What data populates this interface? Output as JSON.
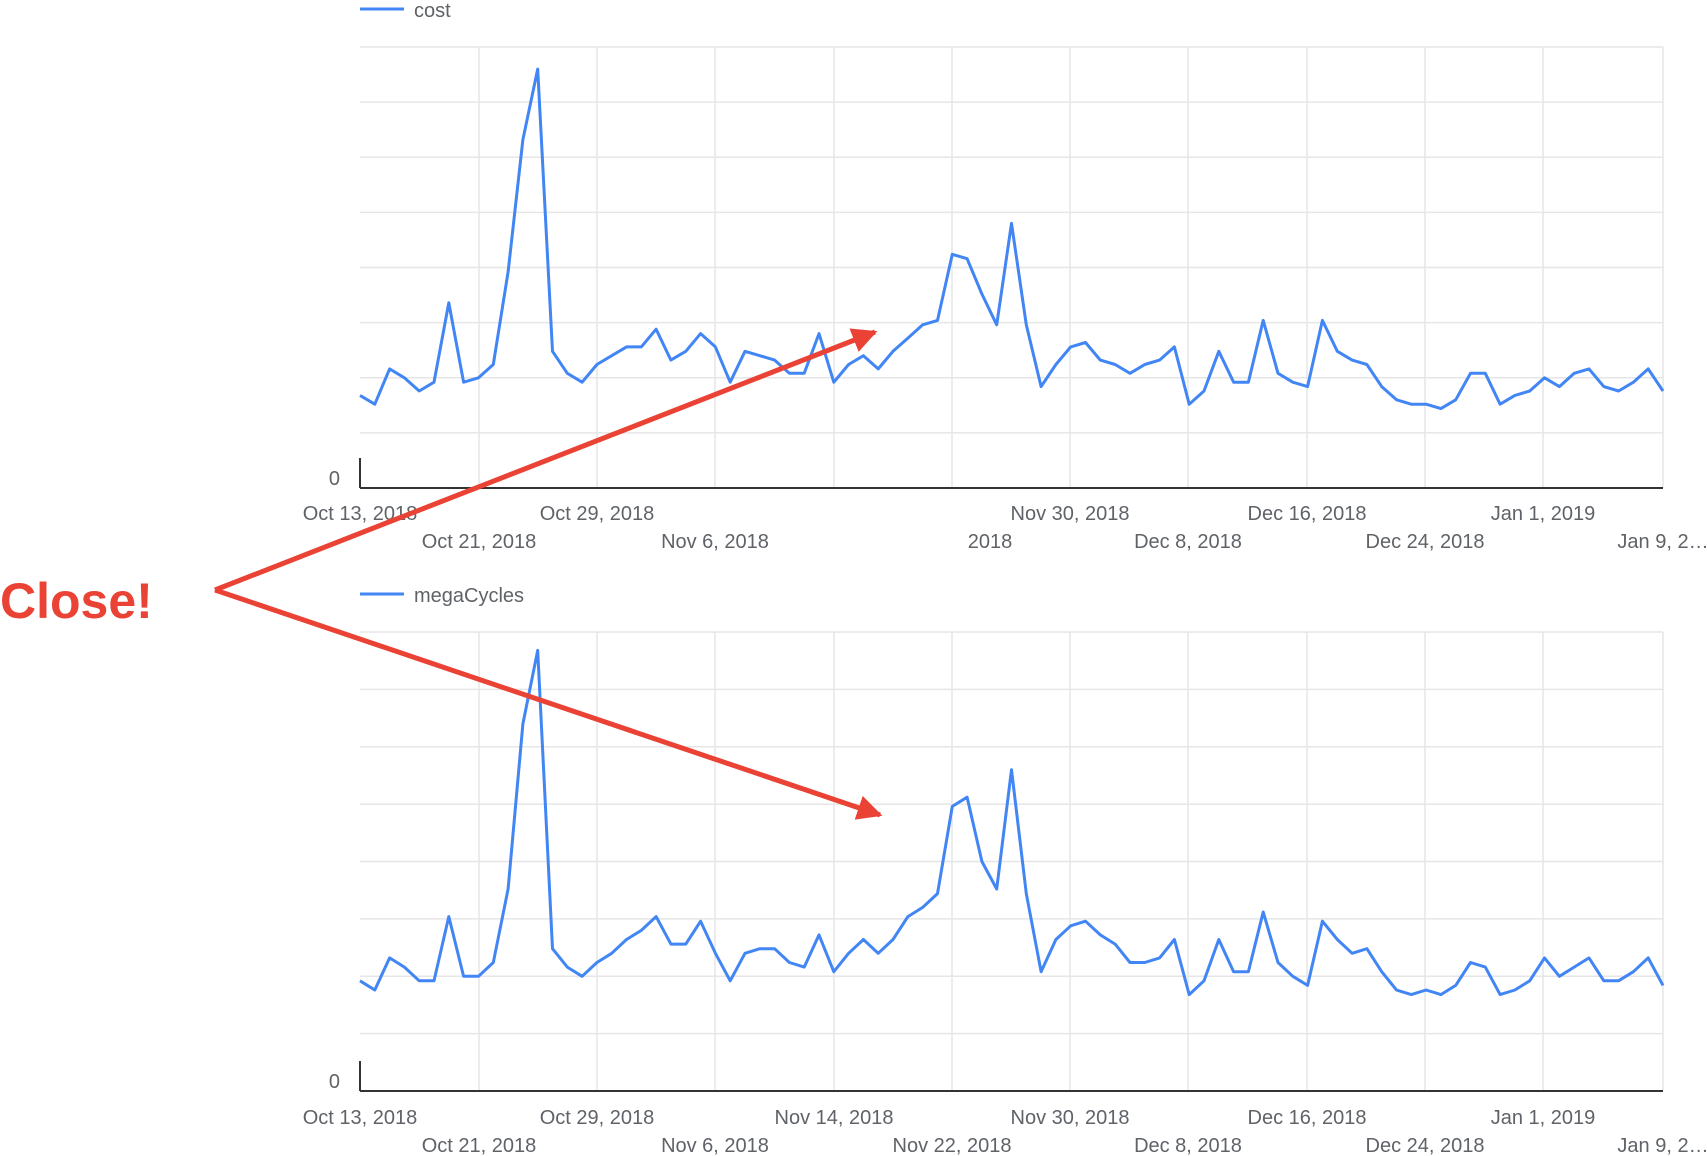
{
  "colors": {
    "series": "#4285f4",
    "grid": "#e6e6e6",
    "axis": "#333333",
    "annotation": "#ea4335",
    "text": "#5f6368"
  },
  "annotation": {
    "text": "Close!"
  },
  "chart_data": [
    {
      "type": "line",
      "legend_position": "top-left",
      "grid": true,
      "series": [
        {
          "name": "cost"
        }
      ],
      "y_zero_label": "0",
      "x_ticks_row1": [
        "Oct 13, 2018",
        "Oct 29, 2018",
        "Nov 30, 2018",
        "Dec 16, 2018",
        "Jan 1, 2019"
      ],
      "x_ticks_row2": [
        "Oct 21, 2018",
        "Nov 6, 2018",
        "2018",
        "Dec 8, 2018",
        "Dec 24, 2018",
        "Jan 9, 2…"
      ],
      "y": [
        0.21,
        0.19,
        0.27,
        0.25,
        0.22,
        0.24,
        0.42,
        0.24,
        0.25,
        0.28,
        0.49,
        0.79,
        0.95,
        0.31,
        0.26,
        0.24,
        0.28,
        0.3,
        0.32,
        0.32,
        0.36,
        0.29,
        0.31,
        0.35,
        0.32,
        0.24,
        0.31,
        0.3,
        0.29,
        0.26,
        0.26,
        0.35,
        0.24,
        0.28,
        0.3,
        0.27,
        0.31,
        0.34,
        0.37,
        0.38,
        0.53,
        0.52,
        0.44,
        0.37,
        0.6,
        0.37,
        0.23,
        0.28,
        0.32,
        0.33,
        0.29,
        0.28,
        0.26,
        0.28,
        0.29,
        0.32,
        0.19,
        0.22,
        0.31,
        0.24,
        0.24,
        0.38,
        0.26,
        0.24,
        0.23,
        0.38,
        0.31,
        0.29,
        0.28,
        0.23,
        0.2,
        0.19,
        0.19,
        0.18,
        0.2,
        0.26,
        0.26,
        0.19,
        0.21,
        0.22,
        0.25,
        0.23,
        0.26,
        0.27,
        0.23,
        0.22,
        0.24,
        0.27,
        0.22
      ]
    },
    {
      "type": "line",
      "legend_position": "top-left",
      "grid": true,
      "series": [
        {
          "name": "megaCycles"
        }
      ],
      "y_zero_label": "0",
      "x_ticks_row1": [
        "Oct 13, 2018",
        "Oct 29, 2018",
        "Nov 14, 2018",
        "Nov 30, 2018",
        "Dec 16, 2018",
        "Jan 1, 2019"
      ],
      "x_ticks_row2": [
        "Oct 21, 2018",
        "Nov 6, 2018",
        "Nov 22, 2018",
        "Dec 8, 2018",
        "Dec 24, 2018",
        "Jan 9, 2…"
      ],
      "y": [
        0.24,
        0.22,
        0.29,
        0.27,
        0.24,
        0.24,
        0.38,
        0.25,
        0.25,
        0.28,
        0.44,
        0.8,
        0.96,
        0.31,
        0.27,
        0.25,
        0.28,
        0.3,
        0.33,
        0.35,
        0.38,
        0.32,
        0.32,
        0.37,
        0.3,
        0.24,
        0.3,
        0.31,
        0.31,
        0.28,
        0.27,
        0.34,
        0.26,
        0.3,
        0.33,
        0.3,
        0.33,
        0.38,
        0.4,
        0.43,
        0.62,
        0.64,
        0.5,
        0.44,
        0.7,
        0.43,
        0.26,
        0.33,
        0.36,
        0.37,
        0.34,
        0.32,
        0.28,
        0.28,
        0.29,
        0.33,
        0.21,
        0.24,
        0.33,
        0.26,
        0.26,
        0.39,
        0.28,
        0.25,
        0.23,
        0.37,
        0.33,
        0.3,
        0.31,
        0.26,
        0.22,
        0.21,
        0.22,
        0.21,
        0.23,
        0.28,
        0.27,
        0.21,
        0.22,
        0.24,
        0.29,
        0.25,
        0.27,
        0.29,
        0.24,
        0.24,
        0.26,
        0.29,
        0.23
      ]
    }
  ]
}
